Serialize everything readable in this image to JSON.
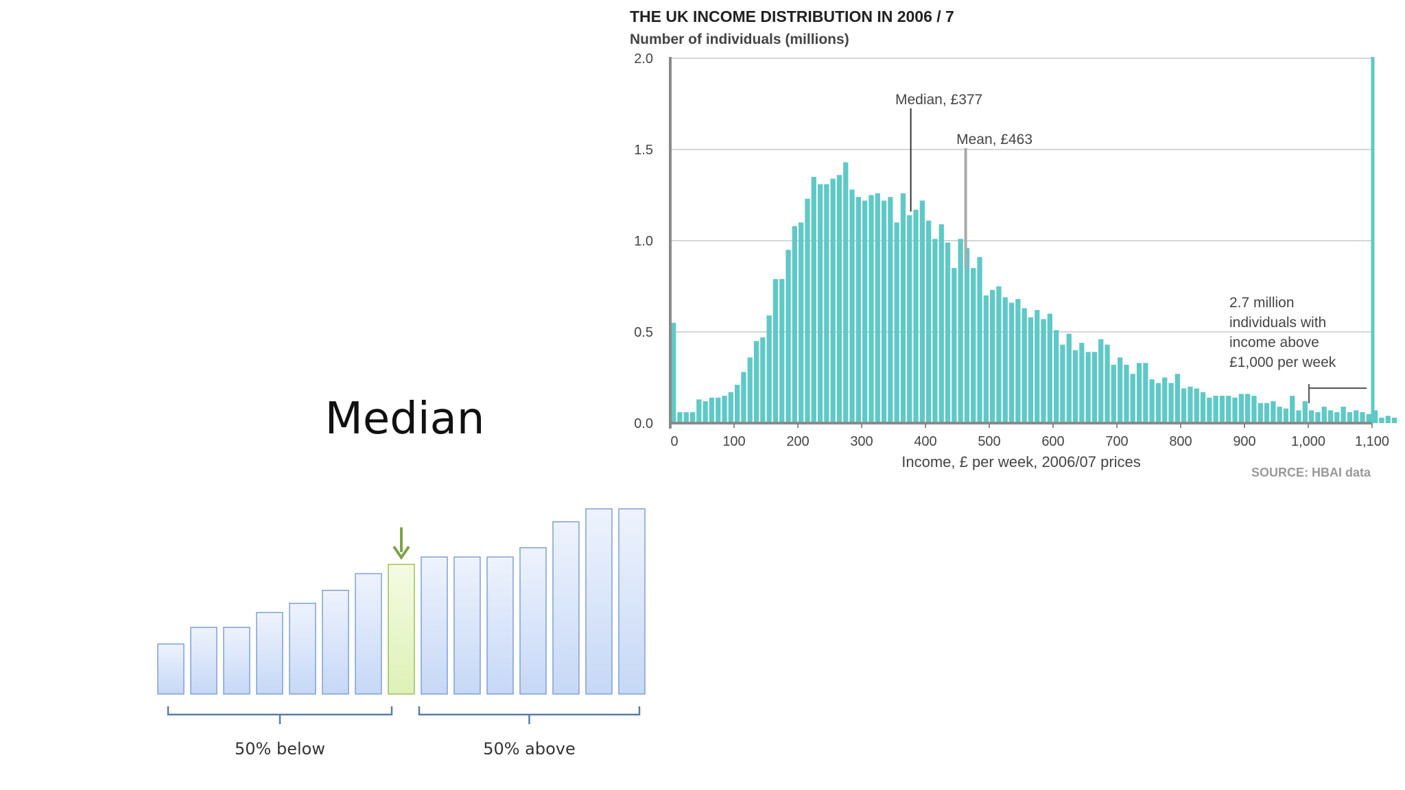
{
  "slide": {
    "title": "Median"
  },
  "median_illustration": {
    "below_label": "50% below",
    "above_label": "50% above",
    "relative_heights": [
      0.27,
      0.36,
      0.36,
      0.44,
      0.49,
      0.56,
      0.65,
      0.7,
      0.74,
      0.74,
      0.74,
      0.79,
      0.93,
      1.0,
      1.0
    ],
    "median_index": 7,
    "colors": {
      "bar": "#c6d8f6",
      "bar_edge": "#7f9fd4",
      "median_bar": "#def1b7",
      "median_edge": "#9bbf55",
      "arrow": "#7ea34a",
      "bracket": "#5a7aa7"
    }
  },
  "chart_data": {
    "type": "bar",
    "title": "THE UK INCOME DISTRIBUTION IN 2006 / 7",
    "ylabel": "Number of individuals (millions)",
    "xlabel": "Income, £ per week, 2006/07 prices",
    "source": "SOURCE: HBAI data",
    "bin_width": 10,
    "x_start": 0,
    "xlim": [
      0,
      1100
    ],
    "ylim": [
      0,
      2.0
    ],
    "x_ticks": [
      "0",
      "100",
      "200",
      "300",
      "400",
      "500",
      "600",
      "700",
      "800",
      "900",
      "1,000",
      "1,100"
    ],
    "y_ticks": [
      "0.0",
      "0.5",
      "1.0",
      "1.5",
      "2.0"
    ],
    "annotations": {
      "median": {
        "label": "Median, £377",
        "value": 377
      },
      "mean": {
        "label": "Mean, £463",
        "value": 463
      },
      "tail": {
        "lines": [
          "2.7 million",
          "individuals with",
          "income above",
          "£1,000 per week"
        ]
      }
    },
    "values": [
      0.55,
      0.06,
      0.06,
      0.06,
      0.13,
      0.12,
      0.14,
      0.14,
      0.15,
      0.17,
      0.21,
      0.28,
      0.36,
      0.45,
      0.47,
      0.59,
      0.79,
      0.79,
      0.95,
      1.08,
      1.1,
      1.23,
      1.35,
      1.31,
      1.31,
      1.34,
      1.36,
      1.43,
      1.28,
      1.24,
      1.22,
      1.25,
      1.26,
      1.22,
      1.24,
      1.1,
      1.26,
      1.14,
      1.17,
      1.22,
      1.11,
      1.01,
      1.09,
      0.99,
      0.85,
      1.01,
      0.96,
      0.85,
      0.91,
      0.7,
      0.73,
      0.75,
      0.69,
      0.66,
      0.68,
      0.63,
      0.58,
      0.62,
      0.57,
      0.6,
      0.51,
      0.43,
      0.49,
      0.4,
      0.44,
      0.39,
      0.39,
      0.46,
      0.43,
      0.32,
      0.36,
      0.32,
      0.27,
      0.33,
      0.33,
      0.24,
      0.22,
      0.25,
      0.22,
      0.27,
      0.19,
      0.2,
      0.19,
      0.17,
      0.14,
      0.15,
      0.15,
      0.15,
      0.14,
      0.16,
      0.16,
      0.15,
      0.11,
      0.11,
      0.12,
      0.09,
      0.08,
      0.15,
      0.07,
      0.12,
      0.07,
      0.06,
      0.09,
      0.07,
      0.06,
      0.09,
      0.06,
      0.07,
      0.06,
      0.05,
      0.07,
      0.03,
      0.04,
      0.03
    ],
    "colors": {
      "bar": "#5ec9c6",
      "axis": "#8a8a8a",
      "grid": "#c8c8c8",
      "title": "#222222",
      "text": "#444444",
      "source": "#999999",
      "right_edge": "#5ec9c6"
    }
  }
}
